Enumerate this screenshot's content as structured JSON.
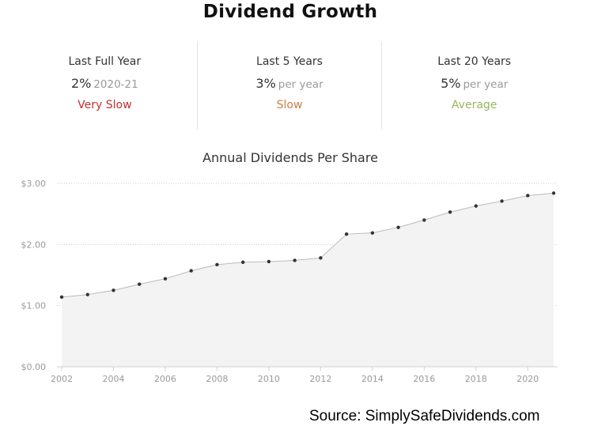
{
  "title": "Dividend Growth",
  "stats": [
    {
      "label": "Last Full Year",
      "value": "2%",
      "suffix": "2020-21",
      "rating": "Very Slow",
      "rating_color": "#c0302f"
    },
    {
      "label": "Last 5 Years",
      "value": "3%",
      "suffix": "per year",
      "rating": "Slow",
      "rating_color": "#c98244"
    },
    {
      "label": "Last 20 Years",
      "value": "5%",
      "suffix": "per year",
      "rating": "Average",
      "rating_color": "#9ab55e"
    }
  ],
  "chart_data": {
    "type": "area",
    "title": "Annual Dividends Per Share",
    "xlabel": "",
    "ylabel": "",
    "x": [
      2002,
      2003,
      2004,
      2005,
      2006,
      2007,
      2008,
      2009,
      2010,
      2011,
      2012,
      2013,
      2014,
      2015,
      2016,
      2017,
      2018,
      2019,
      2020,
      2021
    ],
    "values": [
      1.14,
      1.18,
      1.25,
      1.35,
      1.44,
      1.57,
      1.67,
      1.71,
      1.72,
      1.74,
      1.78,
      2.17,
      2.19,
      2.28,
      2.4,
      2.53,
      2.63,
      2.71,
      2.8,
      2.84
    ],
    "ylim": [
      0,
      3
    ],
    "yticks": [
      0,
      1,
      2,
      3
    ],
    "ytick_labels": [
      "$0.00",
      "$1.00",
      "$2.00",
      "$3.00"
    ],
    "xticks": [
      2002,
      2004,
      2006,
      2008,
      2010,
      2012,
      2014,
      2016,
      2018,
      2020
    ],
    "grid": true,
    "fill_color": "#f3f3f3",
    "line_color": "#bbbbbb",
    "marker_color": "#333333"
  },
  "source": "Source: SimplySafeDividends.com"
}
